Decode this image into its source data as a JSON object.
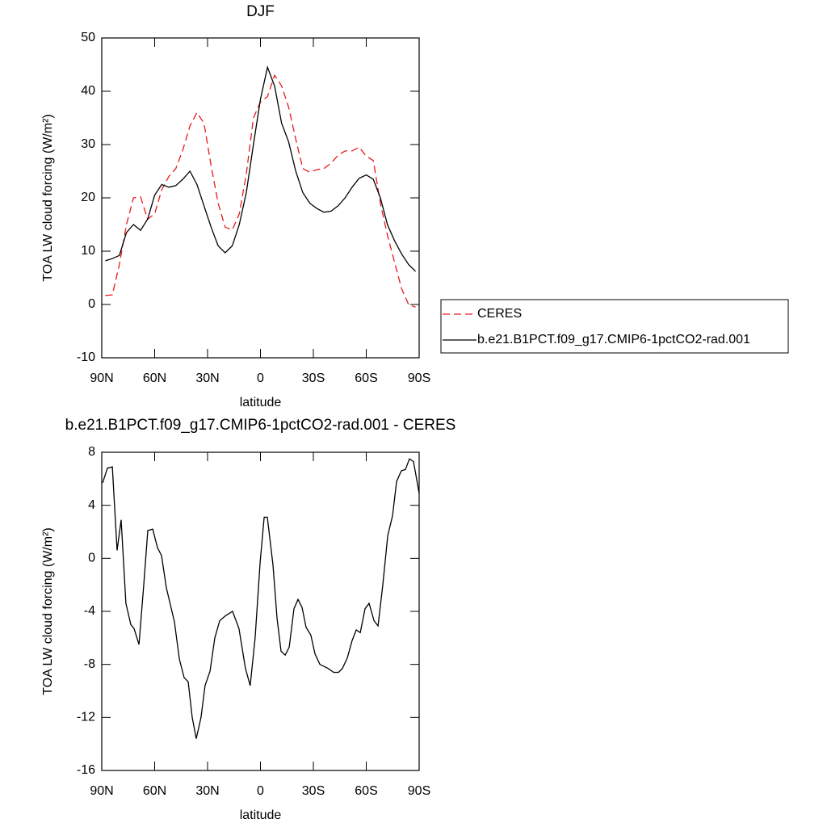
{
  "chart_data": [
    {
      "type": "line",
      "title": "DJF",
      "x_label": "latitude",
      "y_label": "TOA LW cloud forcing (W/m²)",
      "x": [
        88,
        84,
        80,
        76,
        72,
        68,
        64,
        60,
        56,
        52,
        48,
        44,
        40,
        36,
        32,
        28,
        24,
        20,
        16,
        12,
        8,
        4,
        0,
        -4,
        -8,
        -12,
        -16,
        -20,
        -24,
        -28,
        -32,
        -36,
        -40,
        -44,
        -48,
        -52,
        -56,
        -60,
        -64,
        -68,
        -72,
        -76,
        -80,
        -84,
        -88
      ],
      "series": [
        {
          "name": "CERES",
          "color": "#e8191c",
          "dashed": true,
          "values": [
            1.7,
            1.8,
            7.5,
            15,
            20,
            20.2,
            16,
            17,
            21.5,
            24,
            25.5,
            29,
            33.5,
            36,
            34,
            26,
            19,
            14.5,
            14,
            17,
            24.5,
            35,
            38,
            39,
            43,
            41,
            37,
            31,
            25.5,
            24.8,
            25.3,
            25.5,
            26.5,
            28,
            28.8,
            28.8,
            29.5,
            27.8,
            27,
            19,
            13,
            8,
            3,
            0,
            -0.5
          ]
        },
        {
          "name": "b.e21.B1PCT.f09_g17.CMIP6-1pctCO2-rad.001",
          "color": "#000000",
          "dashed": false,
          "values": [
            8.2,
            8.6,
            9.2,
            13.5,
            15,
            13.9,
            16,
            20.5,
            22.5,
            22,
            22.3,
            23.5,
            25,
            22.5,
            18.5,
            14.5,
            11,
            9.7,
            11,
            15,
            21,
            30,
            38.5,
            44.5,
            41,
            34,
            30.5,
            25,
            21,
            19,
            18,
            17.3,
            17.5,
            18.5,
            20,
            22,
            23.7,
            24.3,
            23.5,
            20,
            15,
            12,
            9.5,
            7.5,
            6.2
          ]
        }
      ],
      "xlim": [
        90,
        -90
      ],
      "xticks": [
        {
          "value": 90,
          "label": "90N"
        },
        {
          "value": 60,
          "label": "60N"
        },
        {
          "value": 30,
          "label": "30N"
        },
        0,
        {
          "value": -30,
          "label": "30S"
        },
        {
          "value": -60,
          "label": "60S"
        },
        {
          "value": -90,
          "label": "90S"
        }
      ],
      "ylim": [
        -10,
        50
      ],
      "yticks": [
        -10,
        0,
        10,
        20,
        30,
        40,
        50
      ],
      "legend": "right"
    },
    {
      "type": "line",
      "title": "b.e21.B1PCT.f09_g17.CMIP6-1pctCO2-rad.001 - CERES",
      "x_label": "latitude",
      "y_label": "TOA LW cloud forcing (W/m²)",
      "x": [
        89.5,
        86.8,
        84,
        81.3,
        79,
        76.3,
        73.5,
        71.7,
        68.9,
        66.2,
        63.9,
        61.1,
        58.4,
        56.1,
        53.4,
        48.8,
        46,
        43.3,
        41,
        38.7,
        36.4,
        33.7,
        31.4,
        28.6,
        25.9,
        23.1,
        19.5,
        15.8,
        12.2,
        8.5,
        5.8,
        3,
        0.2,
        -2.1,
        -3.9,
        -7.1,
        -9.4,
        -11.7,
        -14,
        -16.3,
        -19,
        -21.3,
        -23.6,
        -25.9,
        -28.6,
        -30.9,
        -33.7,
        -38.3,
        -41.5,
        -44.3,
        -46.5,
        -49.3,
        -52,
        -54.3,
        -56.6,
        -59.3,
        -61.6,
        -64.4,
        -66.7,
        -69.4,
        -72.2,
        -74.9,
        -77.2,
        -79.9,
        -82.2,
        -84.5,
        -86.8,
        -90
      ],
      "values": [
        5.7,
        6.8,
        6.9,
        0.6,
        2.9,
        -3.4,
        -5,
        -5.3,
        -6.5,
        -2,
        2.1,
        2.2,
        0.8,
        0.2,
        -2.2,
        -4.8,
        -7.6,
        -9,
        -9.3,
        -12,
        -13.6,
        -12,
        -9.6,
        -8.5,
        -6,
        -4.7,
        -4.3,
        -4,
        -5.3,
        -8.3,
        -9.6,
        -6,
        -0.3,
        3.1,
        3.1,
        -0.5,
        -4.5,
        -7,
        -7.3,
        -6.7,
        -3.8,
        -3.1,
        -3.7,
        -5.2,
        -5.8,
        -7.2,
        -8,
        -8.3,
        -8.6,
        -8.6,
        -8.3,
        -7.5,
        -6.2,
        -5.4,
        -5.6,
        -3.8,
        -3.4,
        -4.7,
        -5.1,
        -2,
        1.7,
        3.2,
        5.8,
        6.6,
        6.7,
        7.5,
        7.3,
        4.9
      ],
      "color": "#000000",
      "xlim": [
        90,
        -90
      ],
      "xticks": [
        {
          "value": 90,
          "label": "90N"
        },
        {
          "value": 60,
          "label": "60N"
        },
        {
          "value": 30,
          "label": "30N"
        },
        0,
        {
          "value": -30,
          "label": "30S"
        },
        {
          "value": -60,
          "label": "60S"
        },
        {
          "value": -90,
          "label": "90S"
        }
      ],
      "ylim": [
        -16,
        8
      ],
      "yticks": [
        -16,
        -12,
        -8,
        -4,
        0,
        4,
        8
      ]
    }
  ]
}
